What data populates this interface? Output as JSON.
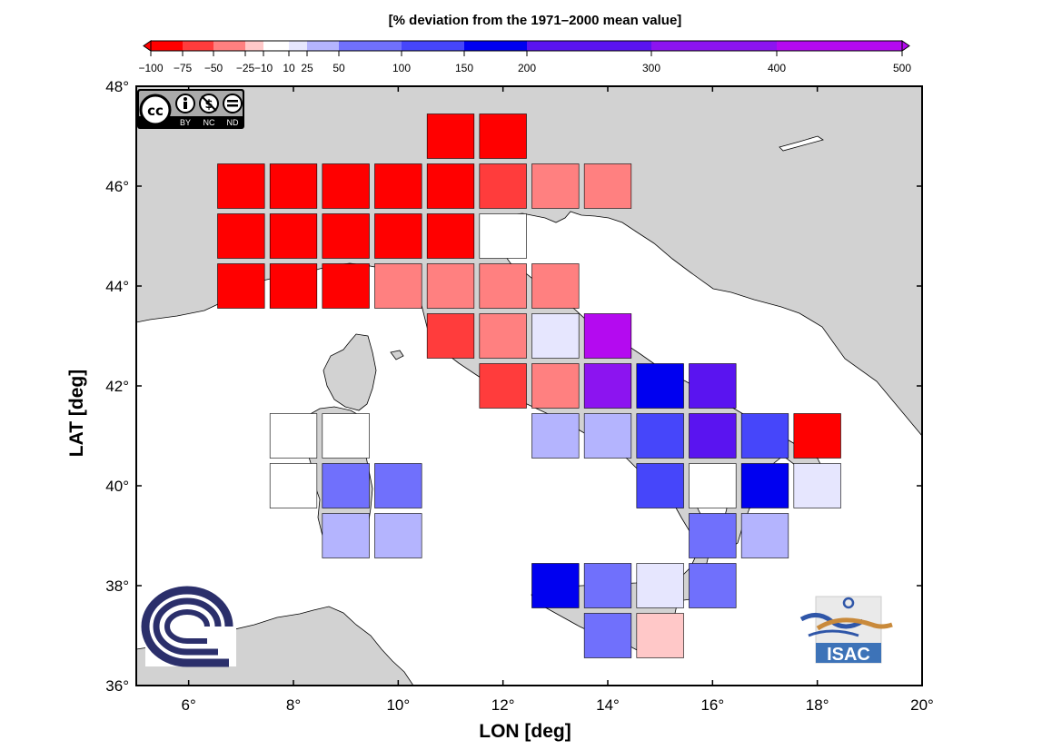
{
  "chart_data": {
    "type": "heatmap",
    "title": "",
    "colorbar": {
      "label": "[% deviation from the 1971–2000 mean value]",
      "tick_labels": [
        "−100",
        "−75",
        "−50",
        "−25",
        "−10",
        "10",
        "25",
        "50",
        "100",
        "150",
        "200",
        "300",
        "400",
        "500"
      ],
      "classes": [
        {
          "from": -100,
          "to": -75,
          "color": "#ff0000"
        },
        {
          "from": -75,
          "to": -50,
          "color": "#ff3c3c"
        },
        {
          "from": -50,
          "to": -25,
          "color": "#ff8080"
        },
        {
          "from": -25,
          "to": -10,
          "color": "#ffc8c8"
        },
        {
          "from": -10,
          "to": 10,
          "color": "#ffffff"
        },
        {
          "from": 10,
          "to": 25,
          "color": "#e6e6fe"
        },
        {
          "from": 25,
          "to": 50,
          "color": "#b4b4fe"
        },
        {
          "from": 50,
          "to": 100,
          "color": "#7070fc"
        },
        {
          "from": 100,
          "to": 150,
          "color": "#4646fa"
        },
        {
          "from": 150,
          "to": 200,
          "color": "#0000f0"
        },
        {
          "from": 200,
          "to": 300,
          "color": "#5a14f0"
        },
        {
          "from": 300,
          "to": 400,
          "color": "#8c14f0"
        },
        {
          "from": 400,
          "to": 500,
          "color": "#b40af0"
        }
      ]
    },
    "xlabel": "LON [deg]",
    "ylabel": "LAT [deg]",
    "xlim": [
      5,
      20
    ],
    "ylim": [
      36,
      48
    ],
    "x_ticks": [
      6,
      8,
      10,
      12,
      14,
      16,
      18,
      20
    ],
    "y_ticks": [
      36,
      38,
      40,
      42,
      44,
      46,
      48
    ],
    "degree_symbol": "°",
    "cell_size_deg": 1,
    "cells": [
      {
        "lon": 11,
        "lat": 47,
        "color": "#ff0000"
      },
      {
        "lon": 12,
        "lat": 47,
        "color": "#ff0000"
      },
      {
        "lon": 7,
        "lat": 46,
        "color": "#ff0000"
      },
      {
        "lon": 8,
        "lat": 46,
        "color": "#ff0000"
      },
      {
        "lon": 9,
        "lat": 46,
        "color": "#ff0000"
      },
      {
        "lon": 10,
        "lat": 46,
        "color": "#ff0000"
      },
      {
        "lon": 11,
        "lat": 46,
        "color": "#ff0000"
      },
      {
        "lon": 12,
        "lat": 46,
        "color": "#ff3c3c"
      },
      {
        "lon": 13,
        "lat": 46,
        "color": "#ff8080"
      },
      {
        "lon": 14,
        "lat": 46,
        "color": "#ff8080"
      },
      {
        "lon": 7,
        "lat": 45,
        "color": "#ff0000"
      },
      {
        "lon": 8,
        "lat": 45,
        "color": "#ff0000"
      },
      {
        "lon": 9,
        "lat": 45,
        "color": "#ff0000"
      },
      {
        "lon": 10,
        "lat": 45,
        "color": "#ff0000"
      },
      {
        "lon": 11,
        "lat": 45,
        "color": "#ff0000"
      },
      {
        "lon": 12,
        "lat": 45,
        "color": "#ffffff"
      },
      {
        "lon": 7,
        "lat": 44,
        "color": "#ff0000"
      },
      {
        "lon": 8,
        "lat": 44,
        "color": "#ff0000"
      },
      {
        "lon": 9,
        "lat": 44,
        "color": "#ff0000"
      },
      {
        "lon": 10,
        "lat": 44,
        "color": "#ff8080"
      },
      {
        "lon": 11,
        "lat": 44,
        "color": "#ff8080"
      },
      {
        "lon": 12,
        "lat": 44,
        "color": "#ff8080"
      },
      {
        "lon": 13,
        "lat": 44,
        "color": "#ff8080"
      },
      {
        "lon": 11,
        "lat": 43,
        "color": "#ff3c3c"
      },
      {
        "lon": 12,
        "lat": 43,
        "color": "#ff8080"
      },
      {
        "lon": 13,
        "lat": 43,
        "color": "#e6e6fe"
      },
      {
        "lon": 14,
        "lat": 43,
        "color": "#b40af0"
      },
      {
        "lon": 12,
        "lat": 42,
        "color": "#ff3c3c"
      },
      {
        "lon": 13,
        "lat": 42,
        "color": "#ff8080"
      },
      {
        "lon": 14,
        "lat": 42,
        "color": "#8c14f0"
      },
      {
        "lon": 15,
        "lat": 42,
        "color": "#0000f0"
      },
      {
        "lon": 16,
        "lat": 42,
        "color": "#5a14f0"
      },
      {
        "lon": 8,
        "lat": 41,
        "color": "#ffffff"
      },
      {
        "lon": 9,
        "lat": 41,
        "color": "#ffffff"
      },
      {
        "lon": 13,
        "lat": 41,
        "color": "#b4b4fe"
      },
      {
        "lon": 14,
        "lat": 41,
        "color": "#b4b4fe"
      },
      {
        "lon": 15,
        "lat": 41,
        "color": "#4646fa"
      },
      {
        "lon": 16,
        "lat": 41,
        "color": "#5a14f0"
      },
      {
        "lon": 17,
        "lat": 41,
        "color": "#4646fa"
      },
      {
        "lon": 18,
        "lat": 41,
        "color": "#ff0000"
      },
      {
        "lon": 8,
        "lat": 40,
        "color": "#ffffff"
      },
      {
        "lon": 9,
        "lat": 40,
        "color": "#7070fc"
      },
      {
        "lon": 10,
        "lat": 40,
        "color": "#7070fc"
      },
      {
        "lon": 15,
        "lat": 40,
        "color": "#4646fa"
      },
      {
        "lon": 16,
        "lat": 40,
        "color": "#ffffff"
      },
      {
        "lon": 17,
        "lat": 40,
        "color": "#0000f0"
      },
      {
        "lon": 18,
        "lat": 40,
        "color": "#e6e6fe"
      },
      {
        "lon": 9,
        "lat": 39,
        "color": "#b4b4fe"
      },
      {
        "lon": 10,
        "lat": 39,
        "color": "#b4b4fe"
      },
      {
        "lon": 16,
        "lat": 39,
        "color": "#7070fc"
      },
      {
        "lon": 17,
        "lat": 39,
        "color": "#b4b4fe"
      },
      {
        "lon": 13,
        "lat": 38,
        "color": "#0000f0"
      },
      {
        "lon": 14,
        "lat": 38,
        "color": "#7070fc"
      },
      {
        "lon": 15,
        "lat": 38,
        "color": "#e6e6fe"
      },
      {
        "lon": 16,
        "lat": 38,
        "color": "#7070fc"
      },
      {
        "lon": 14,
        "lat": 37,
        "color": "#7070fc"
      },
      {
        "lon": 15,
        "lat": 37,
        "color": "#ffc8c8"
      }
    ]
  },
  "map": {
    "land_color": "#d2d2d2",
    "sea_color": "#ffffff",
    "coastline_color": "#000000"
  },
  "logos": {
    "license": {
      "badge": "cc",
      "labels": [
        "BY",
        "NC",
        "ND"
      ]
    },
    "cnr_color": "#2b2f6b",
    "isac_text": "ISAC"
  }
}
